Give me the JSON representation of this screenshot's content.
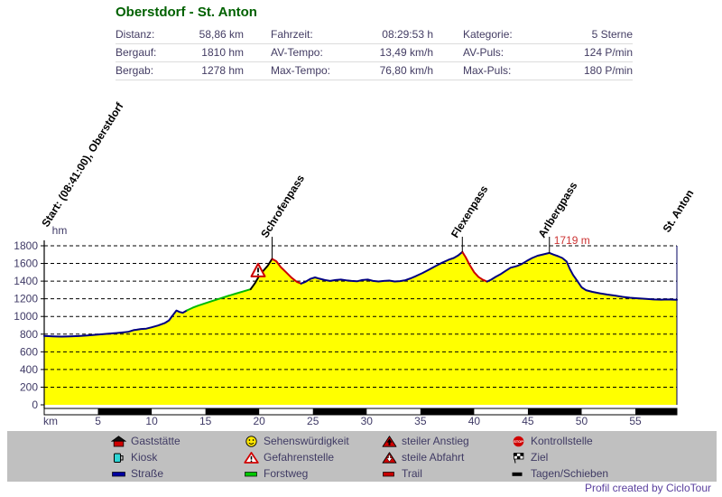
{
  "title": "Oberstdorf - St. Anton",
  "stats": {
    "rows": [
      {
        "cells": [
          {
            "label": "Distanz:",
            "value": "58,86 km"
          },
          {
            "label": "Fahrzeit:",
            "value": "08:29:53 h"
          },
          {
            "label": "Kategorie:",
            "value": "5 Sterne"
          }
        ]
      },
      {
        "cells": [
          {
            "label": "Bergauf:",
            "value": "1810 hm"
          },
          {
            "label": "AV-Tempo:",
            "value": "13,49 km/h"
          },
          {
            "label": "AV-Puls:",
            "value": "124 P/min"
          }
        ]
      },
      {
        "cells": [
          {
            "label": "Bergab:",
            "value": "1278 hm"
          },
          {
            "label": "Max-Tempo:",
            "value": "76,80 km/h"
          },
          {
            "label": "Max-Puls:",
            "value": "180 P/min"
          }
        ]
      }
    ]
  },
  "chart_data": {
    "type": "area",
    "title": "Oberstdorf - St. Anton elevation profile",
    "xlabel": "km",
    "ylabel": "hm",
    "xlim": [
      0,
      58.86
    ],
    "ylim": [
      0,
      1800
    ],
    "x_ticks": [
      5,
      10,
      15,
      20,
      25,
      30,
      35,
      40,
      45,
      50,
      55
    ],
    "y_ticks": [
      0,
      200,
      400,
      600,
      800,
      1000,
      1200,
      1400,
      1600,
      1800
    ],
    "grid": "dashed-horizontal",
    "profile": [
      [
        0,
        780
      ],
      [
        0.8,
        775
      ],
      [
        1.6,
        772
      ],
      [
        2.4,
        775
      ],
      [
        3.2,
        778
      ],
      [
        4,
        785
      ],
      [
        5,
        795
      ],
      [
        6,
        805
      ],
      [
        7,
        815
      ],
      [
        7.8,
        825
      ],
      [
        8.3,
        845
      ],
      [
        8.6,
        850
      ],
      [
        9,
        858
      ],
      [
        9.5,
        862
      ],
      [
        10,
        878
      ],
      [
        10.6,
        898
      ],
      [
        11.2,
        925
      ],
      [
        11.6,
        955
      ],
      [
        12,
        1020
      ],
      [
        12.3,
        1068
      ],
      [
        12.6,
        1050
      ],
      [
        12.9,
        1042
      ],
      [
        13.3,
        1070
      ],
      [
        13.8,
        1098
      ],
      [
        14.3,
        1122
      ],
      [
        15,
        1150
      ],
      [
        15.7,
        1178
      ],
      [
        16.4,
        1205
      ],
      [
        17.1,
        1232
      ],
      [
        17.8,
        1258
      ],
      [
        18.5,
        1282
      ],
      [
        19.2,
        1308
      ],
      [
        19.6,
        1375
      ],
      [
        20,
        1460
      ],
      [
        20.4,
        1520
      ],
      [
        20.8,
        1575
      ],
      [
        21.2,
        1652
      ],
      [
        21.6,
        1625
      ],
      [
        22,
        1560
      ],
      [
        22.5,
        1500
      ],
      [
        23,
        1440
      ],
      [
        23.5,
        1392
      ],
      [
        23.9,
        1372
      ],
      [
        24.3,
        1392
      ],
      [
        24.8,
        1428
      ],
      [
        25.2,
        1442
      ],
      [
        25.6,
        1428
      ],
      [
        26.1,
        1412
      ],
      [
        26.6,
        1402
      ],
      [
        27.1,
        1412
      ],
      [
        27.6,
        1418
      ],
      [
        28.1,
        1408
      ],
      [
        28.6,
        1402
      ],
      [
        29.1,
        1398
      ],
      [
        29.6,
        1412
      ],
      [
        30.1,
        1418
      ],
      [
        30.6,
        1402
      ],
      [
        31.1,
        1396
      ],
      [
        31.6,
        1402
      ],
      [
        32.1,
        1406
      ],
      [
        32.6,
        1396
      ],
      [
        33.1,
        1400
      ],
      [
        33.6,
        1410
      ],
      [
        34.1,
        1432
      ],
      [
        34.6,
        1458
      ],
      [
        35.2,
        1492
      ],
      [
        35.8,
        1530
      ],
      [
        36.4,
        1570
      ],
      [
        37,
        1608
      ],
      [
        37.6,
        1640
      ],
      [
        38.1,
        1662
      ],
      [
        38.5,
        1690
      ],
      [
        38.9,
        1730
      ],
      [
        39.2,
        1672
      ],
      [
        39.6,
        1580
      ],
      [
        40,
        1500
      ],
      [
        40.4,
        1448
      ],
      [
        40.8,
        1415
      ],
      [
        41.2,
        1395
      ],
      [
        41.6,
        1418
      ],
      [
        42,
        1448
      ],
      [
        42.5,
        1482
      ],
      [
        43,
        1522
      ],
      [
        43.4,
        1552
      ],
      [
        43.7,
        1562
      ],
      [
        44,
        1572
      ],
      [
        44.4,
        1592
      ],
      [
        44.9,
        1628
      ],
      [
        45.4,
        1662
      ],
      [
        45.9,
        1688
      ],
      [
        46.4,
        1702
      ],
      [
        47,
        1719
      ],
      [
        47.4,
        1700
      ],
      [
        47.8,
        1682
      ],
      [
        48.2,
        1662
      ],
      [
        48.6,
        1622
      ],
      [
        48.9,
        1538
      ],
      [
        49.2,
        1470
      ],
      [
        49.6,
        1402
      ],
      [
        50,
        1330
      ],
      [
        50.4,
        1298
      ],
      [
        51,
        1278
      ],
      [
        51.7,
        1262
      ],
      [
        52.4,
        1248
      ],
      [
        53.1,
        1236
      ],
      [
        53.8,
        1222
      ],
      [
        54.5,
        1212
      ],
      [
        55.2,
        1206
      ],
      [
        56,
        1200
      ],
      [
        56.7,
        1193
      ],
      [
        57.4,
        1190
      ],
      [
        58,
        1193
      ],
      [
        58.5,
        1190
      ],
      [
        58.86,
        1188
      ]
    ],
    "segments": [
      {
        "from": 0,
        "to": 13.3,
        "surface": "strasse"
      },
      {
        "from": 13.3,
        "to": 19.2,
        "surface": "forstweg"
      },
      {
        "from": 19.2,
        "to": 21.2,
        "surface": "schieben"
      },
      {
        "from": 21.2,
        "to": 23.9,
        "surface": "abfahrt"
      },
      {
        "from": 23.9,
        "to": 38.9,
        "surface": "strasse"
      },
      {
        "from": 38.9,
        "to": 41.2,
        "surface": "abfahrt"
      },
      {
        "from": 41.2,
        "to": 58.86,
        "surface": "strasse"
      }
    ],
    "peaks": [
      {
        "label": "Start: (08:41:00), Oberstdorf",
        "km": 0.3,
        "hm": 780,
        "line": false,
        "label_y": 252
      },
      {
        "label": "Schrofenpass",
        "km": 21.2,
        "hm": 1652,
        "line": true,
        "label_y": 264
      },
      {
        "label": "Flexenpass",
        "km": 38.9,
        "hm": 1730,
        "line": true,
        "label_y": 264
      },
      {
        "label": "Arlbergpass",
        "km": 47.0,
        "hm": 1719,
        "line": true,
        "label_y": 264
      },
      {
        "label": "St. Anton",
        "km": 58.6,
        "hm": 1188,
        "line": true,
        "full_line": true,
        "label_y": 258
      }
    ],
    "annotations": [
      {
        "text": "1719 m",
        "km": 47.0,
        "color": "#cc3333"
      }
    ],
    "hazard_markers": [
      {
        "type": "gefahrenstelle",
        "km": 19.9,
        "hm": 1505
      }
    ],
    "scale_bar": {
      "band_km": 5,
      "first_black": 5
    },
    "colors": {
      "fill": "#ffff00",
      "strasse": "#000080",
      "forstweg": "#00bb00",
      "abfahrt": "#cc0000",
      "schieben": "#000000",
      "grid": "#000000",
      "axis_text": "#3f3a66",
      "annotation": "#cc3333",
      "title": "#006100",
      "legend_bg": "#c0c0c0",
      "credit_text": "#5a3f9e"
    }
  },
  "legend": {
    "items": [
      {
        "icon": "gaststaette-icon",
        "label": "Gaststätte"
      },
      {
        "icon": "kiosk-icon",
        "label": "Kiosk"
      },
      {
        "icon": "strasse-icon",
        "label": "Straße"
      },
      {
        "icon": "sehenswuerdigkeit-icon",
        "label": "Sehenswürdigkeit"
      },
      {
        "icon": "gefahrenstelle-icon",
        "label": "Gefahrenstelle"
      },
      {
        "icon": "forstweg-icon",
        "label": "Forstweg"
      },
      {
        "icon": "steiler-anstieg-icon",
        "label": "steiler Anstieg"
      },
      {
        "icon": "steile-abfahrt-icon",
        "label": "steile Abfahrt"
      },
      {
        "icon": "trail-icon",
        "label": "Trail"
      },
      {
        "icon": "kontrollstelle-icon",
        "label": "Kontrollstelle"
      },
      {
        "icon": "ziel-icon",
        "label": "Ziel"
      },
      {
        "icon": "tagen-schieben-icon",
        "label": "Tagen/Schieben"
      }
    ]
  },
  "credit": "Profil created by CicloTour"
}
